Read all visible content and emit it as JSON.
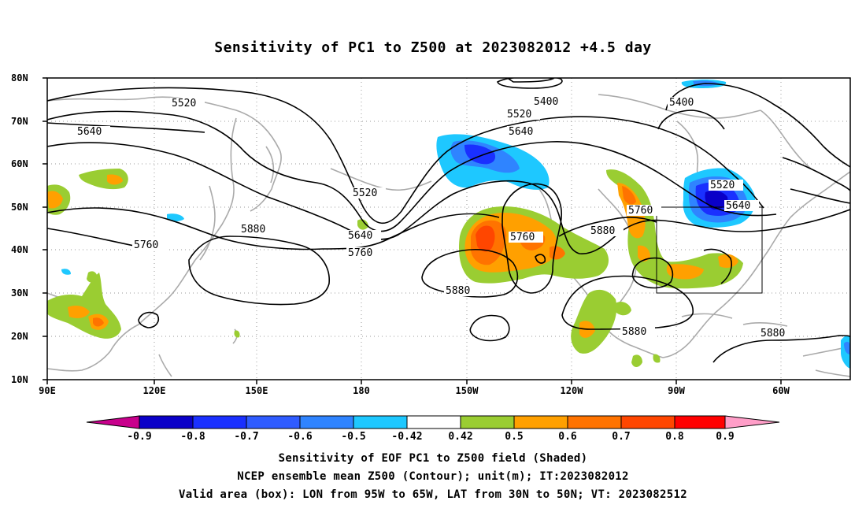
{
  "title": "Sensitivity of PC1 to Z500 at 2023082012 +4.5 day",
  "axes": {
    "lat_labels": [
      "80N",
      "70N",
      "60N",
      "50N",
      "40N",
      "30N",
      "20N",
      "10N"
    ],
    "lon_labels": [
      "90E",
      "120E",
      "150E",
      "180",
      "150W",
      "120W",
      "90W",
      "60W"
    ]
  },
  "contour_labels": {
    "c5520_a": "5520",
    "c5640_a": "5640",
    "c5760_a": "5760",
    "c5880_a": "5880",
    "c5520_b": "5520",
    "c5640_b": "5640",
    "c5760_b": "5760",
    "c5400_a": "5400",
    "c5520_c": "5520",
    "c5640_c": "5640",
    "c5400_b": "5400",
    "c5760_c": "5760",
    "c5880_b": "5880",
    "c5880_c": "5880",
    "c5520_d": "5520",
    "c5640_d": "5640",
    "c5760_d": "5760",
    "c5880_d": "5880",
    "c5880_e": "5880"
  },
  "colorbar": {
    "labels": [
      "-0.9",
      "-0.8",
      "-0.7",
      "-0.6",
      "-0.5",
      "-0.42",
      "0.42",
      "0.5",
      "0.6",
      "0.7",
      "0.8",
      "0.9"
    ],
    "colors": [
      "#0a00c8",
      "#1a30ff",
      "#2f5cff",
      "#2f84ff",
      "#1ec8ff",
      "#ffffff",
      "#9acd32",
      "#ffa000",
      "#ff7300",
      "#ff4600",
      "#ff0000"
    ],
    "left_tip_color": "#c8008c",
    "right_tip_color": "#ff9ec8"
  },
  "caption": {
    "line1": "Sensitivity of EOF PC1 to Z500 field (Shaded)",
    "line2": "NCEP ensemble mean Z500 (Contour); unit(m); IT:2023082012",
    "line3": "Valid area (box): LON from 95W to 65W, LAT from 30N to 50N; VT: 2023082512"
  }
}
